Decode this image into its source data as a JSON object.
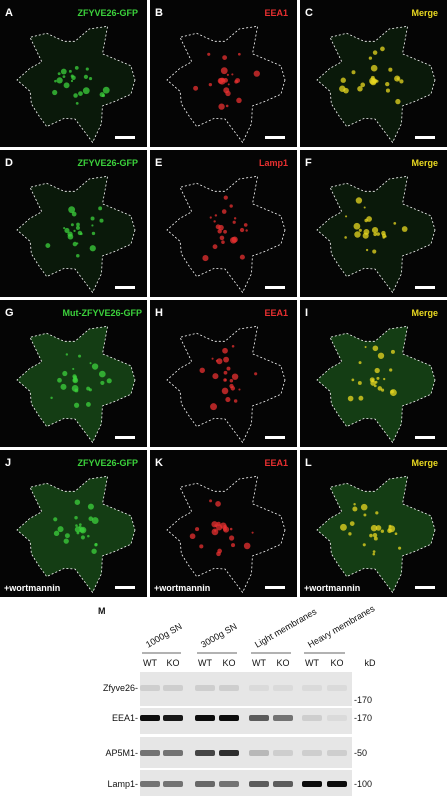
{
  "panels": [
    {
      "letter": "A",
      "label": "ZFYVE26-GFP",
      "color": "#3cd23c"
    },
    {
      "letter": "B",
      "label": "EEA1",
      "color": "#e83030"
    },
    {
      "letter": "C",
      "label": "Merge",
      "color": "#e8d820"
    },
    {
      "letter": "D",
      "label": "ZFYVE26-GFP",
      "color": "#3cd23c"
    },
    {
      "letter": "E",
      "label": "Lamp1",
      "color": "#e83030"
    },
    {
      "letter": "F",
      "label": "Merge",
      "color": "#e8d820"
    },
    {
      "letter": "G",
      "label": "Mut-ZFYVE26-GFP",
      "color": "#3cd23c"
    },
    {
      "letter": "H",
      "label": "EEA1",
      "color": "#e83030"
    },
    {
      "letter": "I",
      "label": "Merge",
      "color": "#e8d820"
    },
    {
      "letter": "J",
      "label": "ZFYVE26-GFP",
      "color": "#3cd23c",
      "treatment": "+wortmannin"
    },
    {
      "letter": "K",
      "label": "EEA1",
      "color": "#e83030",
      "treatment": "+wortmannin"
    },
    {
      "letter": "L",
      "label": "Merge",
      "color": "#e8d820",
      "treatment": "+wortmannin"
    }
  ],
  "blot": {
    "letter": "M",
    "fractions": [
      "1000g SN",
      "3000g SN",
      "Light membranes",
      "Heavy membranes"
    ],
    "lanes": [
      "WT",
      "KO",
      "WT",
      "KO",
      "WT",
      "KO",
      "WT",
      "KO"
    ],
    "unit": "kD",
    "rows": [
      {
        "name": "Zfyve26-",
        "marker": "-170"
      },
      {
        "name": "EEA1-",
        "marker": "-170"
      },
      {
        "name": "AP5M1-",
        "marker": "-50"
      },
      {
        "name": "Lamp1-",
        "marker": "-100"
      }
    ]
  }
}
